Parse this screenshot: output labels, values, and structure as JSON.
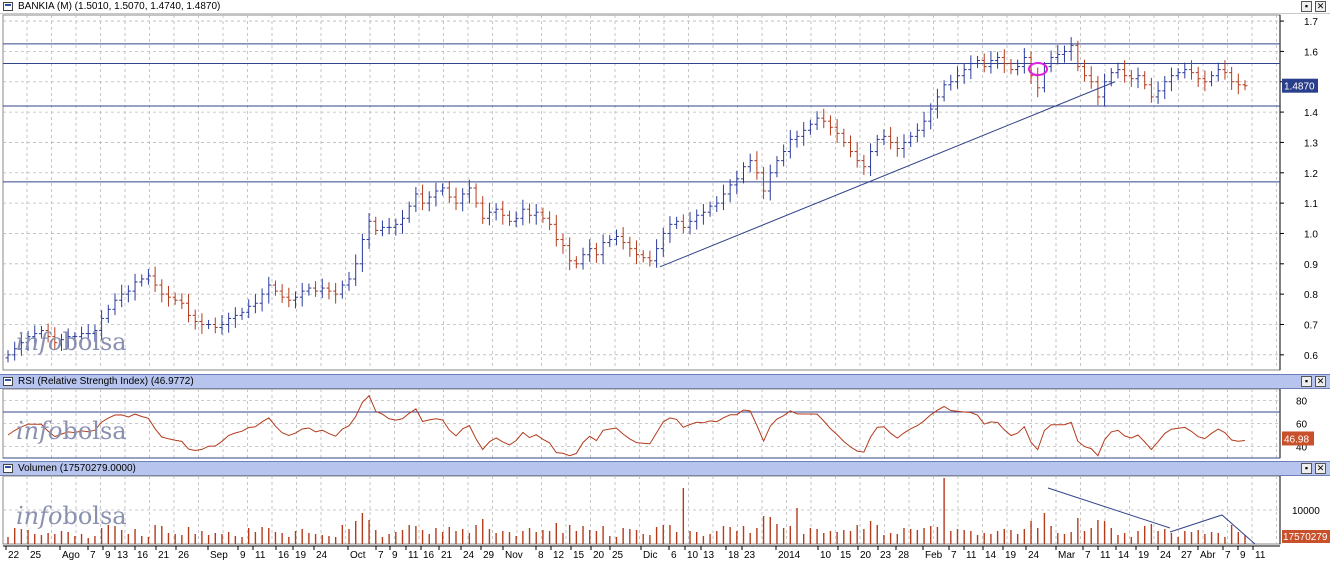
{
  "main": {
    "title": "BANKIA (M) (1.5010, 1.5070, 1.4740, 1.4870)",
    "price_badge": "1.4870",
    "watermark_a": "info",
    "watermark_b": "bolsa",
    "y_ticks": [
      "1.7",
      "1.6",
      "1.5",
      "1.4",
      "1.3",
      "1.2",
      "1.1",
      "1.0",
      "0.9",
      "0.8",
      "0.7",
      "0.6"
    ]
  },
  "rsi": {
    "title": "RSI (Relative Strength Index) (46.9772)",
    "badge": "46.98",
    "y_ticks": [
      "80",
      "60",
      "40"
    ]
  },
  "volume": {
    "title": "Volumen (17570279.0000)",
    "badge": "17570279",
    "y_ticks": [
      "10000"
    ]
  },
  "x_axis": {
    "labels": [
      "22",
      "25",
      "Ago",
      "7",
      "9",
      "13",
      "16",
      "21",
      "26",
      "Sep",
      "9",
      "11",
      "16",
      "19",
      "24",
      "Oct",
      "7",
      "9",
      "11",
      "16",
      "21",
      "24",
      "29",
      "Nov",
      "8",
      "12",
      "15",
      "20",
      "25",
      "Dic",
      "6",
      "10",
      "13",
      "18",
      "23",
      "2014",
      "10",
      "15",
      "20",
      "23",
      "28",
      "Feb",
      "7",
      "11",
      "14",
      "19",
      "24",
      "Mar",
      "7",
      "11",
      "14",
      "19",
      "24",
      "27",
      "Abr",
      "7",
      "9",
      "11"
    ]
  },
  "colors": {
    "up": "#2a3a9c",
    "down": "#b43b1c",
    "grid": "#b9b9b9",
    "hline": "#33458a",
    "circle": "#e020e0",
    "panel_title": "#b6c4ee",
    "badge_bg": "#2a3f8c",
    "rsi_badge_bg": "#c8502a"
  },
  "chart_data": [
    {
      "type": "ohlc",
      "title": "BANKIA (M)",
      "ylim": [
        0.55,
        1.72
      ],
      "horizontal_levels": [
        1.625,
        1.56,
        1.42,
        1.17
      ],
      "trendline": [
        [
          0.89,
          1.5
        ]
      ],
      "closes": [
        0.6,
        0.62,
        0.64,
        0.66,
        0.67,
        0.68,
        0.66,
        0.64,
        0.65,
        0.66,
        0.66,
        0.67,
        0.67,
        0.68,
        0.72,
        0.75,
        0.78,
        0.8,
        0.81,
        0.84,
        0.85,
        0.86,
        0.83,
        0.8,
        0.79,
        0.78,
        0.77,
        0.73,
        0.71,
        0.7,
        0.7,
        0.69,
        0.7,
        0.72,
        0.73,
        0.74,
        0.76,
        0.77,
        0.8,
        0.83,
        0.81,
        0.79,
        0.78,
        0.79,
        0.81,
        0.82,
        0.81,
        0.82,
        0.81,
        0.8,
        0.83,
        0.85,
        0.9,
        0.98,
        1.04,
        1.01,
        1.02,
        1.02,
        1.03,
        1.05,
        1.09,
        1.13,
        1.1,
        1.12,
        1.14,
        1.15,
        1.12,
        1.1,
        1.13,
        1.15,
        1.1,
        1.05,
        1.07,
        1.08,
        1.06,
        1.04,
        1.05,
        1.08,
        1.06,
        1.07,
        1.05,
        1.03,
        0.98,
        0.96,
        0.91,
        0.9,
        0.93,
        0.95,
        0.93,
        0.97,
        0.98,
        0.99,
        0.97,
        0.95,
        0.93,
        0.92,
        0.91,
        0.95,
        1.0,
        1.03,
        1.04,
        1.02,
        1.04,
        1.06,
        1.07,
        1.09,
        1.1,
        1.13,
        1.16,
        1.18,
        1.22,
        1.24,
        1.2,
        1.14,
        1.2,
        1.24,
        1.27,
        1.31,
        1.32,
        1.34,
        1.36,
        1.38,
        1.37,
        1.35,
        1.33,
        1.3,
        1.27,
        1.24,
        1.22,
        1.27,
        1.31,
        1.32,
        1.3,
        1.28,
        1.3,
        1.32,
        1.34,
        1.37,
        1.41,
        1.45,
        1.49,
        1.5,
        1.52,
        1.54,
        1.56,
        1.57,
        1.55,
        1.57,
        1.58,
        1.56,
        1.54,
        1.55,
        1.58,
        1.52,
        1.48,
        1.55,
        1.58,
        1.59,
        1.6,
        1.62,
        1.55,
        1.52,
        1.5,
        1.45,
        1.5,
        1.53,
        1.54,
        1.52,
        1.51,
        1.52,
        1.49,
        1.45,
        1.47,
        1.5,
        1.52,
        1.53,
        1.54,
        1.53,
        1.51,
        1.5,
        1.52,
        1.54,
        1.53,
        1.5,
        1.49,
        1.487
      ]
    },
    {
      "type": "line",
      "title": "RSI (Relative Strength Index)",
      "ylim": [
        30,
        90
      ],
      "horizontal_levels": [
        70,
        30
      ],
      "last_value": 46.98
    },
    {
      "type": "bar",
      "title": "Volumen",
      "last_value": 17570279,
      "trendlines": 2
    }
  ]
}
